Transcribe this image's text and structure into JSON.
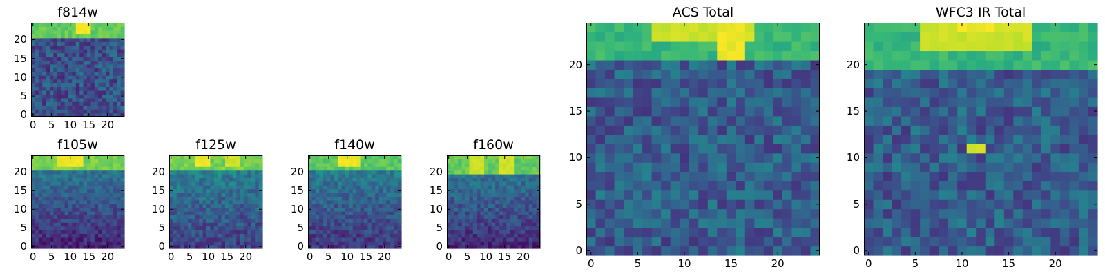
{
  "colormap": "viridis",
  "chart_data": [
    {
      "id": "f814w",
      "type": "heatmap",
      "title": "f814w",
      "nx": 25,
      "ny": 25,
      "xticks": [
        0,
        5,
        10,
        15,
        20
      ],
      "yticks": [
        0,
        5,
        10,
        15,
        20
      ],
      "xlim": [
        0,
        25
      ],
      "ylim": [
        0,
        25
      ],
      "grid": false,
      "seed": 17,
      "z_model": {
        "base": 0.25,
        "noise": 0.3,
        "top_rows": 4,
        "top_level": 0.82,
        "hot": [
          [
            12,
            15,
            22,
            24,
            1.0
          ]
        ]
      }
    },
    {
      "id": "f105w",
      "type": "heatmap",
      "title": "f105w",
      "nx": 25,
      "ny": 25,
      "xticks": [
        0,
        5,
        10,
        15,
        20
      ],
      "yticks": [
        0,
        5,
        10,
        15,
        20
      ],
      "xlim": [
        0,
        25
      ],
      "ylim": [
        0,
        25
      ],
      "grid": false,
      "seed": 23,
      "z_model": {
        "base": 0.1,
        "noise": 0.2,
        "gradient": 0.35,
        "top_rows": 4,
        "top_level": 0.85,
        "hot": [
          [
            7,
            13,
            22,
            24,
            1.0
          ]
        ]
      }
    },
    {
      "id": "f125w",
      "type": "heatmap",
      "title": "f125w",
      "nx": 25,
      "ny": 25,
      "xticks": [
        0,
        5,
        10,
        15,
        20
      ],
      "yticks": [
        0,
        5,
        10,
        15,
        20
      ],
      "xlim": [
        0,
        25
      ],
      "ylim": [
        0,
        25
      ],
      "grid": false,
      "seed": 31,
      "z_model": {
        "base": 0.18,
        "noise": 0.24,
        "gradient": 0.3,
        "top_rows": 4,
        "top_level": 0.85,
        "hot": [
          [
            7,
            10,
            22,
            24,
            1.0
          ],
          [
            15,
            18,
            22,
            24,
            0.95
          ]
        ]
      }
    },
    {
      "id": "f140w",
      "type": "heatmap",
      "title": "f140w",
      "nx": 25,
      "ny": 25,
      "xticks": [
        0,
        5,
        10,
        15,
        20
      ],
      "yticks": [
        0,
        5,
        10,
        15,
        20
      ],
      "xlim": [
        0,
        25
      ],
      "ylim": [
        0,
        25
      ],
      "grid": false,
      "seed": 41,
      "z_model": {
        "base": 0.15,
        "noise": 0.22,
        "gradient": 0.32,
        "top_rows": 4,
        "top_level": 0.8,
        "hot": [
          [
            8,
            13,
            22,
            24,
            1.0
          ]
        ]
      }
    },
    {
      "id": "f160w",
      "type": "heatmap",
      "title": "f160w",
      "nx": 25,
      "ny": 25,
      "xticks": [
        0,
        5,
        10,
        15,
        20
      ],
      "yticks": [
        0,
        5,
        10,
        15,
        20
      ],
      "xlim": [
        0,
        25
      ],
      "ylim": [
        0,
        25
      ],
      "grid": false,
      "seed": 53,
      "z_model": {
        "base": 0.12,
        "noise": 0.22,
        "gradient": 0.33,
        "top_rows": 5,
        "top_level": 0.82,
        "hot": [
          [
            6,
            9,
            20,
            24,
            0.95
          ],
          [
            14,
            17,
            20,
            24,
            0.95
          ]
        ]
      }
    },
    {
      "id": "acs-total",
      "type": "heatmap",
      "title": "ACS Total",
      "nx": 25,
      "ny": 25,
      "xticks": [
        0,
        5,
        10,
        15,
        20
      ],
      "yticks": [
        0,
        5,
        10,
        15,
        20
      ],
      "xlim": [
        0,
        25
      ],
      "ylim": [
        0,
        25
      ],
      "grid": false,
      "seed": 67,
      "z_model": {
        "base": 0.3,
        "noise": 0.3,
        "top_rows": 4,
        "top_level": 0.72,
        "hot": [
          [
            7,
            17,
            23,
            24,
            0.95
          ],
          [
            14,
            16,
            21,
            24,
            1.0
          ]
        ]
      }
    },
    {
      "id": "wfc3-ir-total",
      "type": "heatmap",
      "title": "WFC3 IR Total",
      "nx": 25,
      "ny": 25,
      "xticks": [
        0,
        5,
        10,
        15,
        20
      ],
      "yticks": [
        0,
        5,
        10,
        15,
        20
      ],
      "xlim": [
        0,
        25
      ],
      "ylim": [
        0,
        25
      ],
      "grid": false,
      "seed": 79,
      "z_model": {
        "base": 0.3,
        "noise": 0.3,
        "top_rows": 5,
        "top_level": 0.72,
        "hot": [
          [
            6,
            17,
            22,
            24,
            0.95
          ],
          [
            10,
            13,
            24,
            24,
            1.0
          ],
          [
            11,
            12,
            11,
            11,
            0.95
          ]
        ]
      }
    }
  ]
}
